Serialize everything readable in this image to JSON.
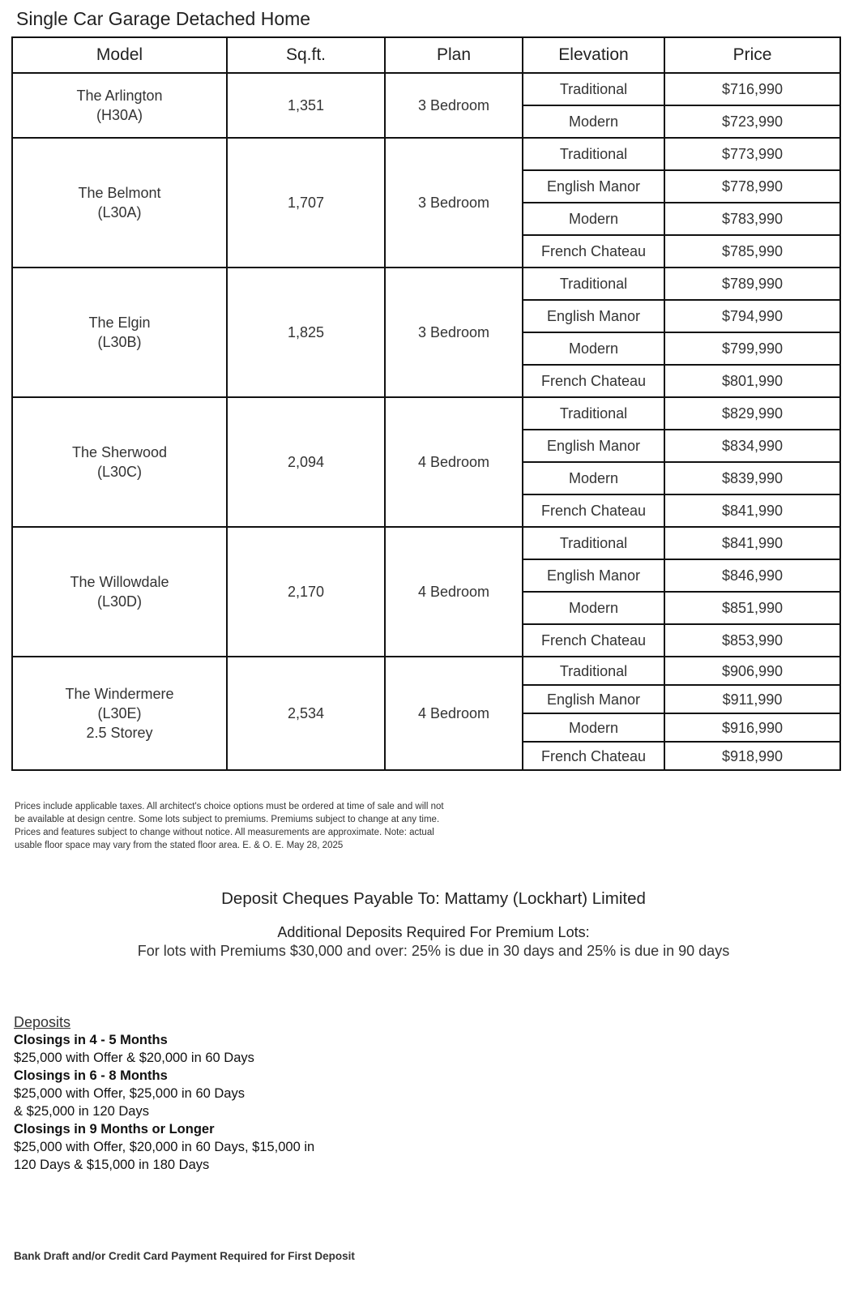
{
  "title": "Single Car Garage Detached Home",
  "table": {
    "headers": [
      "Model",
      "Sq.ft.",
      "Plan",
      "Elevation",
      "Price"
    ],
    "models": [
      {
        "name": [
          "The Arlington",
          "(H30A)"
        ],
        "sqft": "1,351",
        "plan": "3 Bedroom",
        "elevations": [
          [
            "Traditional",
            "$716,990"
          ],
          [
            "Modern",
            "$723,990"
          ]
        ]
      },
      {
        "name": [
          "The Belmont",
          "(L30A)"
        ],
        "sqft": "1,707",
        "plan": "3 Bedroom",
        "elevations": [
          [
            "Traditional",
            "$773,990"
          ],
          [
            "English Manor",
            "$778,990"
          ],
          [
            "Modern",
            "$783,990"
          ],
          [
            "French Chateau",
            "$785,990"
          ]
        ]
      },
      {
        "name": [
          "The Elgin",
          "(L30B)"
        ],
        "sqft": "1,825",
        "plan": "3 Bedroom",
        "elevations": [
          [
            "Traditional",
            "$789,990"
          ],
          [
            "English Manor",
            "$794,990"
          ],
          [
            "Modern",
            "$799,990"
          ],
          [
            "French Chateau",
            "$801,990"
          ]
        ]
      },
      {
        "name": [
          "The Sherwood",
          "(L30C)"
        ],
        "sqft": "2,094",
        "plan": "4 Bedroom",
        "elevations": [
          [
            "Traditional",
            "$829,990"
          ],
          [
            "English Manor",
            "$834,990"
          ],
          [
            "Modern",
            "$839,990"
          ],
          [
            "French Chateau",
            "$841,990"
          ]
        ]
      },
      {
        "name": [
          "The Willowdale",
          "(L30D)"
        ],
        "sqft": "2,170",
        "plan": "4 Bedroom",
        "elevations": [
          [
            "Traditional",
            "$841,990"
          ],
          [
            "English Manor",
            "$846,990"
          ],
          [
            "Modern",
            "$851,990"
          ],
          [
            "French Chateau",
            "$853,990"
          ]
        ]
      },
      {
        "name": [
          "The Windermere",
          "(L30E)",
          "2.5 Storey"
        ],
        "sqft": "2,534",
        "plan": "4 Bedroom",
        "elevations": [
          [
            "Traditional",
            "$906,990"
          ],
          [
            "English Manor",
            "$911,990"
          ],
          [
            "Modern",
            "$916,990"
          ],
          [
            "French Chateau",
            "$918,990"
          ]
        ]
      }
    ]
  },
  "fine_print": "Prices include applicable taxes. All architect's choice options must be ordered at time of sale and will not be available at design centre.  Some lots subject to premiums. Premiums subject to change at any time. Prices and features subject to change without notice. All measurements are approximate. Note: actual usable floor space may vary from the stated floor area.  E. & O. E. May 28, 2025",
  "deposit_payable": "Deposit Cheques Payable To: Mattamy (Lockhart) Limited",
  "premium_heading": "Additional Deposits Required For Premium Lots:",
  "premium_text": "For lots with Premiums $30,000 and over: 25% is due in 30 days and 25% is due in 90 days",
  "deposits": {
    "heading": "Deposits",
    "groups": [
      {
        "title": "Closings in 4 - 5 Months",
        "lines": [
          "$25,000 with Offer & $20,000 in 60 Days"
        ]
      },
      {
        "title": "Closings in 6 - 8 Months",
        "lines": [
          "$25,000 with Offer, $25,000 in 60 Days",
          "& $25,000 in 120 Days"
        ]
      },
      {
        "title": "Closings in 9 Months or Longer",
        "lines": [
          "$25,000 with Offer, $20,000 in 60 Days, $15,000 in",
          "120 Days & $15,000 in 180 Days"
        ]
      }
    ]
  },
  "footer": "Bank Draft and/or Credit Card Payment Required for First Deposit"
}
